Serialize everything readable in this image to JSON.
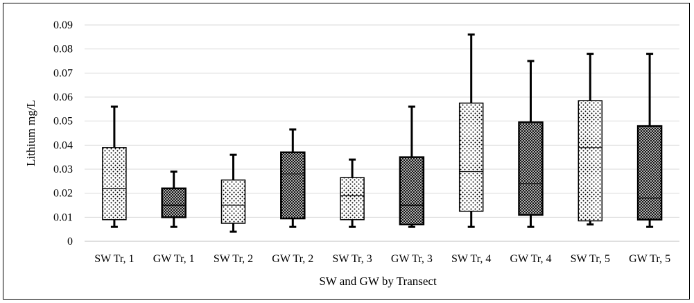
{
  "chart_data": {
    "type": "boxplot",
    "xlabel": "SW and GW by Transect",
    "ylabel": "Lithium mg/L",
    "ylim": [
      0,
      0.09
    ],
    "yticks": [
      "0",
      "0.01",
      "0.02",
      "0.03",
      "0.04",
      "0.05",
      "0.06",
      "0.07",
      "0.08",
      "0.09"
    ],
    "grid": true,
    "categories": [
      "SW Tr, 1",
      "GW Tr, 1",
      "SW Tr, 2",
      "GW Tr, 2",
      "SW Tr, 3",
      "GW Tr, 3",
      "SW Tr, 4",
      "GW Tr, 4",
      "SW Tr, 5",
      "GW Tr, 5"
    ],
    "boxes": [
      {
        "min": 0.006,
        "q1": 0.009,
        "median": 0.022,
        "q3": 0.039,
        "max": 0.056,
        "pattern": "light"
      },
      {
        "min": 0.006,
        "q1": 0.01,
        "median": 0.015,
        "q3": 0.022,
        "max": 0.029,
        "pattern": "dark"
      },
      {
        "min": 0.004,
        "q1": 0.0075,
        "median": 0.015,
        "q3": 0.0255,
        "max": 0.036,
        "pattern": "light"
      },
      {
        "min": 0.006,
        "q1": 0.0095,
        "median": 0.028,
        "q3": 0.037,
        "max": 0.0465,
        "pattern": "dark"
      },
      {
        "min": 0.006,
        "q1": 0.009,
        "median": 0.019,
        "q3": 0.0265,
        "max": 0.034,
        "pattern": "light"
      },
      {
        "min": 0.006,
        "q1": 0.007,
        "median": 0.015,
        "q3": 0.035,
        "max": 0.056,
        "pattern": "dark"
      },
      {
        "min": 0.006,
        "q1": 0.0125,
        "median": 0.029,
        "q3": 0.0575,
        "max": 0.086,
        "pattern": "light"
      },
      {
        "min": 0.006,
        "q1": 0.011,
        "median": 0.024,
        "q3": 0.0495,
        "max": 0.075,
        "pattern": "dark"
      },
      {
        "min": 0.007,
        "q1": 0.0085,
        "median": 0.039,
        "q3": 0.0585,
        "max": 0.078,
        "pattern": "light"
      },
      {
        "min": 0.006,
        "q1": 0.009,
        "median": 0.018,
        "q3": 0.048,
        "max": 0.078,
        "pattern": "dark"
      }
    ],
    "colors": {
      "grid": "#d9d9d9",
      "axis": "#bfbfbf",
      "whisker": "#000000",
      "box_stroke": "#000000"
    }
  }
}
